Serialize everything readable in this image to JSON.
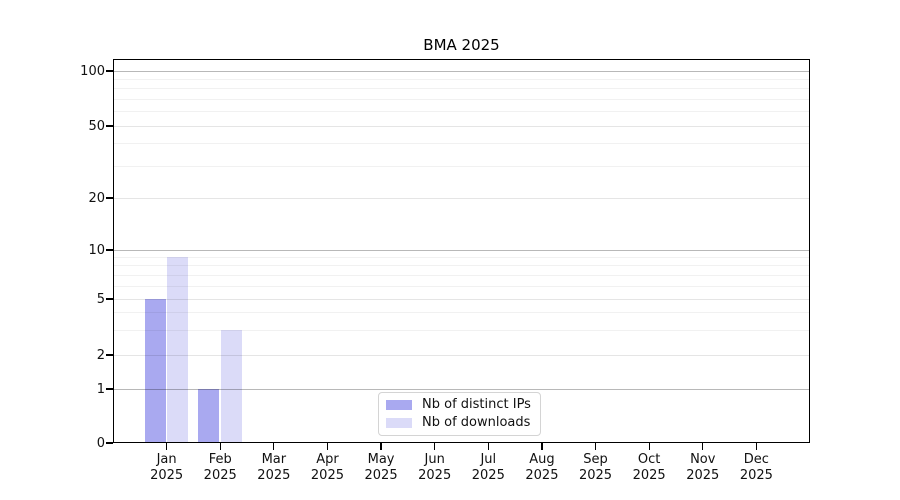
{
  "chart_data": {
    "type": "bar",
    "title": "BMA 2025",
    "categories": [
      {
        "month": "Jan",
        "year": "2025"
      },
      {
        "month": "Feb",
        "year": "2025"
      },
      {
        "month": "Mar",
        "year": "2025"
      },
      {
        "month": "Apr",
        "year": "2025"
      },
      {
        "month": "May",
        "year": "2025"
      },
      {
        "month": "Jun",
        "year": "2025"
      },
      {
        "month": "Jul",
        "year": "2025"
      },
      {
        "month": "Aug",
        "year": "2025"
      },
      {
        "month": "Sep",
        "year": "2025"
      },
      {
        "month": "Oct",
        "year": "2025"
      },
      {
        "month": "Nov",
        "year": "2025"
      },
      {
        "month": "Dec",
        "year": "2025"
      }
    ],
    "series": [
      {
        "name": "Nb of distinct IPs",
        "color": "#a9a9f0",
        "values": [
          5,
          1,
          0,
          0,
          0,
          0,
          0,
          0,
          0,
          0,
          0,
          0
        ]
      },
      {
        "name": "Nb of downloads",
        "color": "#dbdbf8",
        "values": [
          9,
          3,
          0,
          0,
          0,
          0,
          0,
          0,
          0,
          0,
          0,
          0
        ]
      }
    ],
    "xlabel": "",
    "ylabel": "",
    "y_axis": {
      "scale": "log above 1, linear 0 to 1",
      "ticks": [
        0,
        1,
        2,
        5,
        10,
        20,
        50,
        100
      ],
      "minor_ticks": [
        3,
        4,
        6,
        7,
        8,
        9,
        30,
        40,
        60,
        70,
        80,
        90
      ],
      "emphasized_gridlines": [
        1,
        10,
        100
      ],
      "ylim": [
        0,
        113
      ]
    },
    "grid": "horizontal",
    "legend_position": "lower center"
  }
}
